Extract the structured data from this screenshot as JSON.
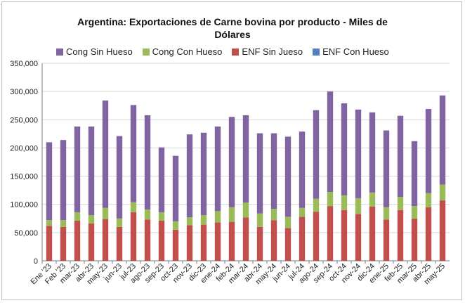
{
  "chart_data": {
    "type": "bar",
    "stacked": true,
    "title": "Argentina: Exportaciones de Carne bovina por producto - Miles de Dólares",
    "title_lines": [
      "Argentina: Exportaciones de Carne bovina por producto - Miles de",
      "Dólares"
    ],
    "ylim": [
      0,
      350000
    ],
    "yticks": [
      "0",
      "50,000",
      "100,000",
      "150,000",
      "200,000",
      "250,000",
      "300,000",
      "350,000"
    ],
    "grid": "horizontal",
    "legend_position": "top",
    "categories": [
      "Ene '23",
      "Feb '23",
      "mar-23",
      "abr-23",
      "may-23",
      "jun-23",
      "jul-23",
      "ago-23",
      "sep-23",
      "oct-23",
      "nov-23",
      "dic-23",
      "ene-24",
      "feb-24",
      "mar-24",
      "abr-24",
      "may-24",
      "jun-24",
      "jul-24",
      "ago-24",
      "sep-24",
      "oct-24",
      "nov-24",
      "dic-24",
      "ene-25",
      "feb-25",
      "mar-25",
      "abr-25",
      "may-25"
    ],
    "series": [
      {
        "name": "ENF Sin Jueso",
        "color": "#c0504d",
        "values": [
          62000,
          60000,
          71000,
          66000,
          74000,
          60000,
          86000,
          73000,
          71000,
          55000,
          63000,
          64000,
          68000,
          69000,
          77000,
          60000,
          72000,
          58000,
          78000,
          87000,
          97000,
          90000,
          83000,
          96000,
          73000,
          90000,
          75000,
          95000,
          107000
        ]
      },
      {
        "name": "Cong Con Hueso",
        "color": "#9bbb59",
        "values": [
          10000,
          12000,
          15000,
          15000,
          20000,
          15000,
          18000,
          18000,
          15000,
          15000,
          14000,
          17000,
          20000,
          26000,
          26000,
          24000,
          20000,
          20000,
          16000,
          23000,
          25000,
          26000,
          28000,
          25000,
          22000,
          23000,
          22000,
          25000,
          28000
        ]
      },
      {
        "name": "ENF Con Hueso",
        "color": "#4f81bd",
        "values": [
          0,
          0,
          0,
          0,
          0,
          0,
          0,
          0,
          0,
          0,
          0,
          0,
          0,
          0,
          0,
          0,
          0,
          0,
          0,
          0,
          0,
          0,
          0,
          0,
          0,
          0,
          0,
          0,
          0
        ]
      },
      {
        "name": "Cong Sin Hueso",
        "color": "#8064a2",
        "values": [
          138000,
          142000,
          152000,
          157000,
          190000,
          146000,
          172000,
          167000,
          115000,
          116000,
          147000,
          146000,
          150000,
          160000,
          155000,
          142000,
          134000,
          142000,
          135000,
          157000,
          178000,
          163000,
          157000,
          142000,
          136000,
          144000,
          115000,
          149000,
          158000
        ]
      }
    ],
    "legend": [
      {
        "name": "Cong Sin Hueso",
        "color": "#8064a2"
      },
      {
        "name": "Cong Con Hueso",
        "color": "#9bbb59"
      },
      {
        "name": "ENF Sin Jueso",
        "color": "#c0504d"
      },
      {
        "name": "ENF Con Hueso",
        "color": "#4f81bd"
      }
    ]
  }
}
